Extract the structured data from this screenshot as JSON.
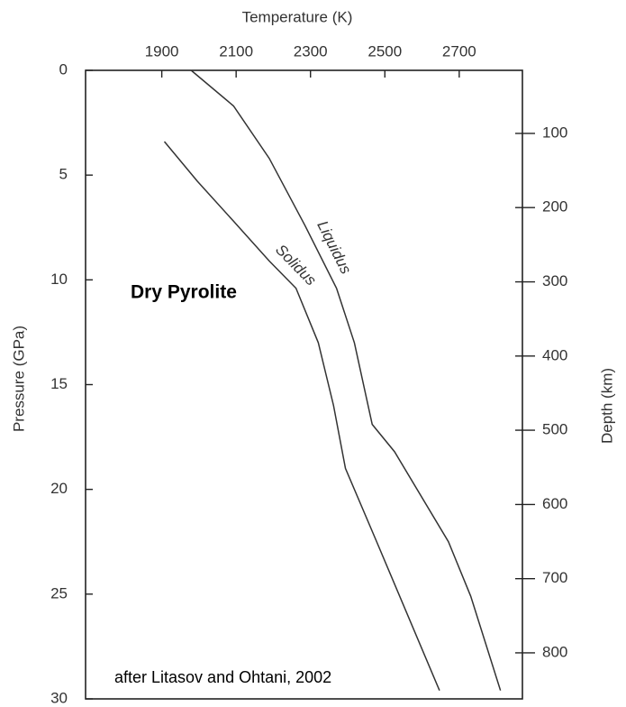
{
  "chart_data": {
    "type": "line",
    "x_label": "Temperature (K)",
    "y_label": "Pressure (GPa)",
    "y2_label": "Depth (km)",
    "annotations": [
      "Dry Pyrolite",
      "after Litasov and Ohtani, 2002"
    ],
    "xlim": [
      1695,
      2870
    ],
    "xticks": [
      1900,
      2100,
      2300,
      2500,
      2700
    ],
    "ylim": [
      30,
      0
    ],
    "yticks": [
      0,
      5,
      10,
      15,
      20,
      25,
      30
    ],
    "y2lim": [
      862,
      15
    ],
    "y2ticks": [
      100,
      200,
      300,
      400,
      500,
      600,
      700,
      800
    ],
    "series": [
      {
        "name": "Liquidus",
        "color": "#333333",
        "x": [
          1979,
          2093,
          2189,
          2285,
          2370,
          2418,
          2466,
          2526,
          2671,
          2731,
          2811
        ],
        "values": [
          0,
          1.7,
          4.2,
          7.4,
          10.4,
          13.0,
          16.9,
          18.2,
          22.5,
          25.1,
          29.6
        ]
      },
      {
        "name": "Solidus",
        "color": "#333333",
        "x": [
          1907,
          1996,
          2093,
          2189,
          2261,
          2321,
          2362,
          2394,
          2478,
          2647
        ],
        "values": [
          3.4,
          5.3,
          7.2,
          9.1,
          10.4,
          13.0,
          16.0,
          19.0,
          22.5,
          29.6
        ]
      }
    ]
  }
}
